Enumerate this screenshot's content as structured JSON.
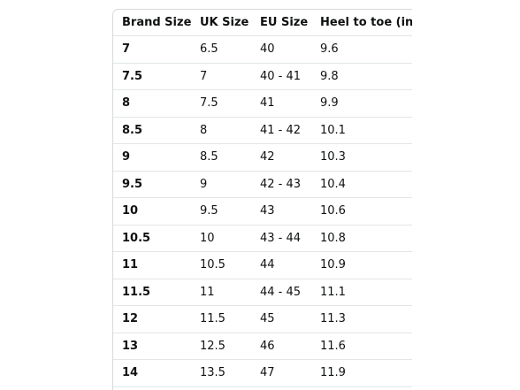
{
  "table": {
    "header": [
      "Brand Size",
      "UK Size",
      "EU Size",
      "Heel to toe (in)"
    ],
    "rows": [
      [
        "7",
        "6.5",
        "40",
        "9.6"
      ],
      [
        "7.5",
        "7",
        "40 - 41",
        "9.8"
      ],
      [
        "8",
        "7.5",
        "41",
        "9.9"
      ],
      [
        "8.5",
        "8",
        "41 - 42",
        "10.1"
      ],
      [
        "9",
        "8.5",
        "42",
        "10.3"
      ],
      [
        "9.5",
        "9",
        "42 - 43",
        "10.4"
      ],
      [
        "10",
        "9.5",
        "43",
        "10.6"
      ],
      [
        "10.5",
        "10",
        "43 - 44",
        "10.8"
      ],
      [
        "11",
        "10.5",
        "44",
        "10.9"
      ],
      [
        "11.5",
        "11",
        "44 - 45",
        "11.1"
      ],
      [
        "12",
        "11.5",
        "45",
        "11.3"
      ],
      [
        "13",
        "12.5",
        "46",
        "11.6"
      ],
      [
        "14",
        "13.5",
        "47",
        "11.9"
      ]
    ]
  }
}
